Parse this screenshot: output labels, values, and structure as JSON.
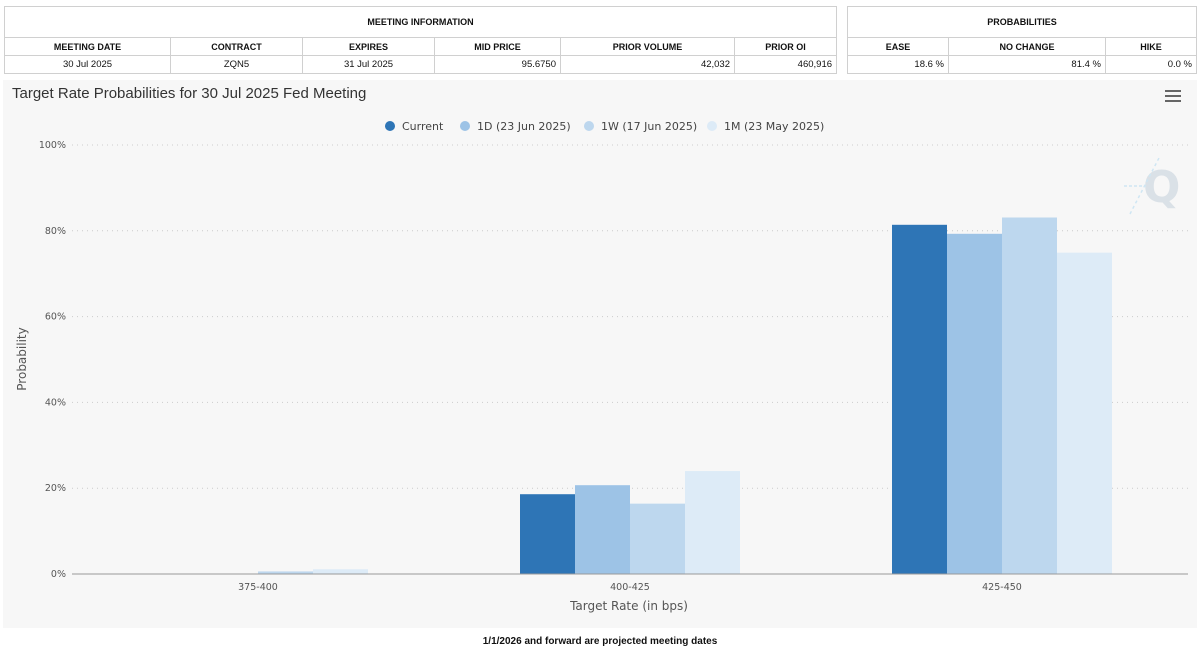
{
  "meeting_info": {
    "title": "MEETING INFORMATION",
    "headers": [
      "MEETING DATE",
      "CONTRACT",
      "EXPIRES",
      "MID PRICE",
      "PRIOR VOLUME",
      "PRIOR OI"
    ],
    "values": [
      "30 Jul 2025",
      "ZQN5",
      "31 Jul 2025",
      "95.6750",
      "42,032",
      "460,916"
    ]
  },
  "probabilities": {
    "title": "PROBABILITIES",
    "headers": [
      "EASE",
      "NO CHANGE",
      "HIKE"
    ],
    "values": [
      "18.6 %",
      "81.4 %",
      "0.0 %"
    ]
  },
  "footer_note": "1/1/2026 and forward are projected meeting dates",
  "colors": {
    "current": "#2e75b6",
    "d1": "#9dc3e6",
    "w1": "#bdd7ee",
    "m1": "#ddebf7",
    "grid": "#cccccc",
    "background": "#f7f7f7"
  },
  "chart_data": {
    "type": "bar",
    "title": "Target Rate Probabilities for 30 Jul 2025 Fed Meeting",
    "xlabel": "Target Rate (in bps)",
    "ylabel": "Probability",
    "categories": [
      "375-400",
      "400-425",
      "425-450"
    ],
    "ylim": [
      0,
      100
    ],
    "yticks": [
      0,
      20,
      40,
      60,
      80,
      100
    ],
    "ytick_labels": [
      "0%",
      "20%",
      "40%",
      "60%",
      "80%",
      "100%"
    ],
    "legend_position": "top-center",
    "series": [
      {
        "name": "Current",
        "key": "current",
        "values": [
          0.0,
          18.6,
          81.4
        ]
      },
      {
        "name": "1D (23 Jun 2025)",
        "key": "d1",
        "values": [
          0.0,
          20.7,
          79.3
        ]
      },
      {
        "name": "1W (17 Jun 2025)",
        "key": "w1",
        "values": [
          0.6,
          16.4,
          83.1
        ]
      },
      {
        "name": "1M (23 May 2025)",
        "key": "m1",
        "values": [
          1.1,
          24.0,
          74.9
        ]
      }
    ]
  }
}
